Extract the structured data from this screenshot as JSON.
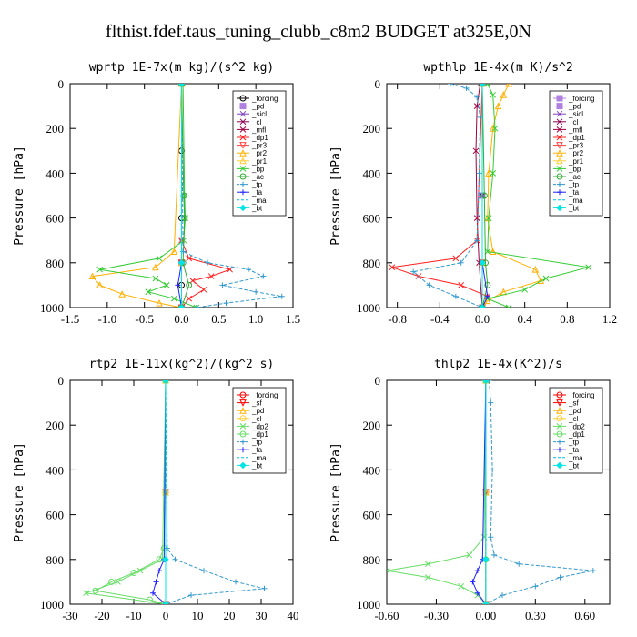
{
  "suptitle": "flthist.fdef.taus_tuning_clubb_c8m2  BUDGET at325E,0N",
  "colors": {
    "forcing": "#000000",
    "pd": "#b080e0",
    "sicl": "#8040c0",
    "cl": "#8b0050",
    "mfl": "#a00040",
    "dp1": "#ff2020",
    "pr3": "#ff4040",
    "pr2": "#ffb000",
    "pr1": "#ffcc33",
    "bp": "#33cc33",
    "ac": "#33aa33",
    "tp": "#3399cc",
    "ta": "#2222ff",
    "ma": "#00bbdd",
    "bt": "#00e5e5",
    "sf": "#ff0000",
    "dp2": "#66dd66"
  },
  "chart_data": [
    {
      "type": "line",
      "title": "wprtp  1E-7x(m kg)/(s^2 kg)",
      "ylabel": "Pressure [hPa]",
      "xlim": [
        -1.5,
        1.5
      ],
      "ylim": [
        1000,
        0
      ],
      "xticks": [
        "-1.5",
        "-1.0",
        "-0.5",
        "0.0",
        "0.5",
        "1.0",
        "1.5"
      ],
      "yticks": [
        "0",
        "200",
        "400",
        "600",
        "800",
        "1000"
      ],
      "legend_position": "top-right",
      "series": [
        {
          "name": "_forcing",
          "key": "forcing",
          "marker": "o",
          "dash": "",
          "y": [
            0,
            300,
            600,
            800,
            900,
            1000
          ],
          "x": [
            0,
            0,
            0,
            0,
            0,
            0
          ]
        },
        {
          "name": "_pd",
          "key": "pd",
          "marker": "s",
          "dash": "",
          "y": [
            0,
            800,
            1000
          ],
          "x": [
            0,
            0,
            0
          ]
        },
        {
          "name": "_sicl",
          "key": "sicl",
          "marker": "x",
          "dash": "",
          "y": [
            0,
            800,
            1000
          ],
          "x": [
            0,
            0,
            0
          ]
        },
        {
          "name": "_cl",
          "key": "cl",
          "marker": "x",
          "dash": "",
          "y": [
            0,
            800,
            1000
          ],
          "x": [
            0,
            0,
            0
          ]
        },
        {
          "name": "_mfl",
          "key": "mfl",
          "marker": "x",
          "dash": "",
          "y": [
            0,
            800,
            1000
          ],
          "x": [
            0,
            0,
            0
          ]
        },
        {
          "name": "_dp1",
          "key": "dp1",
          "marker": "x",
          "dash": "",
          "y": [
            0,
            700,
            780,
            830,
            860,
            880,
            920,
            960,
            1000
          ],
          "x": [
            0,
            0,
            0.1,
            0.65,
            0.4,
            0.15,
            0.3,
            0.1,
            0
          ]
        },
        {
          "name": "_pr3",
          "key": "pr3",
          "marker": "v",
          "dash": "",
          "y": [
            0,
            700,
            800,
            1000
          ],
          "x": [
            0,
            0,
            0,
            0
          ]
        },
        {
          "name": "_pr2",
          "key": "pr2",
          "marker": "^",
          "dash": "",
          "y": [
            0,
            750,
            820,
            860,
            900,
            940,
            980,
            1000
          ],
          "x": [
            0,
            -0.1,
            -0.35,
            -1.2,
            -1.1,
            -0.8,
            -0.3,
            0
          ]
        },
        {
          "name": "_pr1",
          "key": "pr1",
          "marker": "^",
          "dash": "",
          "y": [
            0,
            800,
            1000
          ],
          "x": [
            0,
            0,
            0
          ]
        },
        {
          "name": "_bp",
          "key": "bp",
          "marker": "x",
          "dash": "",
          "y": [
            0,
            500,
            600,
            700,
            780,
            830,
            870,
            900,
            930,
            960,
            1000
          ],
          "x": [
            0.02,
            0.04,
            0.05,
            0.03,
            -0.3,
            -1.1,
            -0.35,
            -0.2,
            -0.45,
            -0.1,
            0.2
          ]
        },
        {
          "name": "_ac",
          "key": "ac",
          "marker": "o",
          "dash": "",
          "y": [
            0,
            500,
            600,
            800,
            900,
            1000
          ],
          "x": [
            0,
            0.03,
            0.04,
            0.02,
            0.1,
            0
          ]
        },
        {
          "name": "_tp",
          "key": "tp",
          "marker": "+",
          "dash": "4,2",
          "y": [
            0,
            750,
            800,
            830,
            860,
            900,
            930,
            950,
            980,
            1000
          ],
          "x": [
            0,
            0.02,
            0.35,
            0.9,
            1.1,
            0.55,
            1.0,
            1.35,
            0.6,
            0.2
          ]
        },
        {
          "name": "_ta",
          "key": "ta",
          "marker": "+",
          "dash": "",
          "y": [
            0,
            800,
            900,
            1000
          ],
          "x": [
            0,
            0,
            -0.05,
            0
          ]
        },
        {
          "name": "_ma",
          "key": "ma",
          "marker": "",
          "dash": "6,3",
          "y": [
            0,
            800,
            1000
          ],
          "x": [
            0,
            0,
            0
          ]
        },
        {
          "name": "_bt",
          "key": "bt",
          "marker": "D",
          "dash": "",
          "y": [
            0,
            800,
            1000
          ],
          "x": [
            0,
            0,
            0
          ]
        }
      ]
    },
    {
      "type": "line",
      "title": "wpthlp  1E-4x(m K)/s^2",
      "ylabel": "Pressure [hPa]",
      "xlim": [
        -0.9,
        1.2
      ],
      "ylim": [
        1000,
        0
      ],
      "xticks": [
        "-0.8",
        "-0.4",
        "0.0",
        "0.4",
        "0.8",
        "1.2"
      ],
      "yticks": [
        "0",
        "200",
        "400",
        "600",
        "800",
        "1000"
      ],
      "legend_position": "top-right",
      "series": [
        {
          "name": "_forcing",
          "key": "pd",
          "marker": "s",
          "dash": "",
          "y": [
            0,
            500,
            1000
          ],
          "x": [
            0,
            0,
            0
          ]
        },
        {
          "name": "_pd",
          "key": "pd",
          "marker": "s",
          "dash": "",
          "y": [
            0,
            500,
            1000
          ],
          "x": [
            0,
            0,
            0
          ]
        },
        {
          "name": "_sicl",
          "key": "sicl",
          "marker": "x",
          "dash": "",
          "y": [
            0,
            500,
            1000
          ],
          "x": [
            0,
            0,
            0
          ]
        },
        {
          "name": "_cl",
          "key": "cl",
          "marker": "x",
          "dash": "",
          "y": [
            0,
            500,
            1000
          ],
          "x": [
            0,
            0,
            0
          ]
        },
        {
          "name": "_mfl",
          "key": "mfl",
          "marker": "x",
          "dash": "",
          "y": [
            0,
            100,
            300,
            600,
            800,
            1000
          ],
          "x": [
            -0.02,
            -0.05,
            -0.06,
            -0.05,
            -0.03,
            0
          ]
        },
        {
          "name": "_dp1",
          "key": "dp1",
          "marker": "x",
          "dash": "",
          "y": [
            0,
            700,
            780,
            820,
            860,
            900,
            950,
            1000
          ],
          "x": [
            0,
            -0.05,
            -0.25,
            -0.85,
            -0.6,
            -0.2,
            0.05,
            0
          ]
        },
        {
          "name": "_pr3",
          "key": "pr3",
          "marker": "v",
          "dash": "",
          "y": [
            0,
            800,
            1000
          ],
          "x": [
            0,
            0,
            0
          ]
        },
        {
          "name": "_pr2",
          "key": "pr2",
          "marker": "^",
          "dash": "",
          "y": [
            0,
            50,
            100,
            200,
            400,
            600,
            750,
            830,
            880,
            930,
            970,
            1000
          ],
          "x": [
            0.25,
            0.2,
            0.15,
            0.1,
            0.06,
            0.05,
            0.1,
            0.5,
            0.55,
            0.2,
            0.05,
            0
          ]
        },
        {
          "name": "_pr1",
          "key": "pr1",
          "marker": "^",
          "dash": "",
          "y": [
            0,
            800,
            1000
          ],
          "x": [
            0,
            0,
            0
          ]
        },
        {
          "name": "_bp",
          "key": "bp",
          "marker": "x",
          "dash": "",
          "y": [
            0,
            50,
            200,
            400,
            600,
            750,
            820,
            870,
            920,
            960,
            1000
          ],
          "x": [
            0.05,
            0.1,
            0.12,
            0.1,
            0.06,
            0.05,
            1.0,
            0.6,
            0.4,
            0.05,
            0.25
          ]
        },
        {
          "name": "_ac",
          "key": "ac",
          "marker": "o",
          "dash": "",
          "y": [
            0,
            500,
            800,
            900,
            1000
          ],
          "x": [
            0,
            0.02,
            0.03,
            0.05,
            0
          ]
        },
        {
          "name": "_tp",
          "key": "tp",
          "marker": "+",
          "dash": "4,2",
          "y": [
            0,
            20,
            60,
            150,
            400,
            700,
            800,
            840,
            900,
            950,
            1000
          ],
          "x": [
            -0.3,
            -0.15,
            -0.05,
            -0.02,
            -0.03,
            -0.05,
            -0.2,
            -0.65,
            -0.5,
            -0.25,
            0
          ]
        },
        {
          "name": "_ta",
          "key": "ta",
          "marker": "+",
          "dash": "",
          "y": [
            0,
            800,
            950,
            1000
          ],
          "x": [
            0,
            0,
            0.05,
            0
          ]
        },
        {
          "name": "_ma",
          "key": "ma",
          "marker": "",
          "dash": "6,3",
          "y": [
            0,
            800,
            1000
          ],
          "x": [
            0,
            0,
            0
          ]
        },
        {
          "name": "_bt",
          "key": "bt",
          "marker": "D",
          "dash": "",
          "y": [
            0,
            800,
            1000
          ],
          "x": [
            0,
            0,
            0
          ]
        }
      ]
    },
    {
      "type": "line",
      "title": "rtp2  1E-11x(kg^2)/(kg^2 s)",
      "ylabel": "Pressure [hPa]",
      "xlim": [
        -30,
        40
      ],
      "ylim": [
        1000,
        0
      ],
      "xticks": [
        "-30",
        "-20",
        "-10",
        "0",
        "10",
        "20",
        "30",
        "40"
      ],
      "yticks": [
        "0",
        "200",
        "400",
        "600",
        "800",
        "1000"
      ],
      "legend_position": "top-right",
      "series": [
        {
          "name": "_forcing",
          "key": "sf",
          "marker": "o",
          "dash": "",
          "y": [
            0,
            500,
            1000
          ],
          "x": [
            0,
            0,
            0
          ]
        },
        {
          "name": "_sf",
          "key": "sf",
          "marker": "v",
          "dash": "",
          "y": [
            0,
            500,
            1000
          ],
          "x": [
            0,
            0,
            0
          ]
        },
        {
          "name": "_pd",
          "key": "pr2",
          "marker": "^",
          "dash": "",
          "y": [
            0,
            500,
            1000
          ],
          "x": [
            0,
            0,
            0
          ]
        },
        {
          "name": "_cl",
          "key": "pr1",
          "marker": "o",
          "dash": "",
          "y": [
            0,
            500,
            1000
          ],
          "x": [
            0,
            0,
            0
          ]
        },
        {
          "name": "_dp2",
          "key": "dp2",
          "marker": "x",
          "dash": "",
          "y": [
            0,
            800,
            850,
            900,
            950,
            1000
          ],
          "x": [
            0,
            -1,
            -8,
            -15,
            -25,
            0
          ]
        },
        {
          "name": "_dp1",
          "key": "dp2",
          "marker": "o",
          "dash": "",
          "y": [
            0,
            750,
            800,
            860,
            900,
            940,
            980,
            1000
          ],
          "x": [
            0,
            -0.5,
            -2,
            -10,
            -17,
            -22,
            -5,
            0
          ]
        },
        {
          "name": "_tp",
          "key": "tp",
          "marker": "+",
          "dash": "4,2",
          "y": [
            0,
            750,
            800,
            850,
            900,
            930,
            960,
            1000
          ],
          "x": [
            0,
            0.5,
            3,
            12,
            22,
            31,
            8,
            0
          ]
        },
        {
          "name": "_ta",
          "key": "ta",
          "marker": "+",
          "dash": "",
          "y": [
            0,
            800,
            850,
            900,
            950,
            1000
          ],
          "x": [
            0,
            -0.5,
            -2,
            -3,
            -4,
            0
          ]
        },
        {
          "name": "_ma",
          "key": "ma",
          "marker": "",
          "dash": "6,3",
          "y": [
            0,
            800,
            1000
          ],
          "x": [
            0,
            0,
            0
          ]
        },
        {
          "name": "_bt",
          "key": "bt",
          "marker": "D",
          "dash": "",
          "y": [
            0,
            800,
            1000
          ],
          "x": [
            0,
            0,
            0
          ]
        }
      ]
    },
    {
      "type": "line",
      "title": "thlp2  1E-4x(K^2)/s",
      "ylabel": "Pressure [hPa]",
      "xlim": [
        -0.6,
        0.75
      ],
      "ylim": [
        1000,
        0
      ],
      "xticks": [
        "-0.60",
        "-0.30",
        "0.00",
        "0.30",
        "0.60"
      ],
      "yticks": [
        "0",
        "200",
        "400",
        "600",
        "800",
        "1000"
      ],
      "legend_position": "top-right",
      "series": [
        {
          "name": "_forcing",
          "key": "sf",
          "marker": "o",
          "dash": "",
          "y": [
            0,
            500,
            1000
          ],
          "x": [
            0,
            0,
            0
          ]
        },
        {
          "name": "_sf",
          "key": "sf",
          "marker": "v",
          "dash": "",
          "y": [
            0,
            500,
            1000
          ],
          "x": [
            0,
            0,
            0
          ]
        },
        {
          "name": "_pd",
          "key": "pr2",
          "marker": "^",
          "dash": "",
          "y": [
            0,
            500,
            1000
          ],
          "x": [
            0,
            0,
            0
          ]
        },
        {
          "name": "_cl",
          "key": "pr1",
          "marker": "o",
          "dash": "",
          "y": [
            0,
            500,
            1000
          ],
          "x": [
            0,
            0,
            0
          ]
        },
        {
          "name": "_dp2",
          "key": "dp2",
          "marker": "x",
          "dash": "",
          "y": [
            0,
            700,
            780,
            820,
            850,
            880,
            920,
            960,
            1000
          ],
          "x": [
            0,
            -0.01,
            -0.1,
            -0.35,
            -0.6,
            -0.35,
            -0.15,
            -0.05,
            0
          ]
        },
        {
          "name": "_dp1",
          "key": "dp2",
          "marker": "o",
          "dash": "",
          "y": [
            0,
            800,
            1000
          ],
          "x": [
            0,
            0,
            0
          ]
        },
        {
          "name": "_tp",
          "key": "tp",
          "marker": "+",
          "dash": "4,2",
          "y": [
            0,
            100,
            400,
            700,
            780,
            820,
            850,
            880,
            920,
            960,
            1000
          ],
          "x": [
            0.02,
            0.03,
            0.04,
            0.03,
            0.05,
            0.2,
            0.65,
            0.45,
            0.3,
            0.1,
            0
          ]
        },
        {
          "name": "_ta",
          "key": "ta",
          "marker": "+",
          "dash": "",
          "y": [
            0,
            800,
            850,
            900,
            950,
            1000
          ],
          "x": [
            0,
            -0.02,
            -0.05,
            -0.08,
            -0.05,
            0
          ]
        },
        {
          "name": "_ma",
          "key": "ma",
          "marker": "",
          "dash": "6,3",
          "y": [
            0,
            800,
            1000
          ],
          "x": [
            0,
            0,
            0
          ]
        },
        {
          "name": "_bt",
          "key": "bt",
          "marker": "D",
          "dash": "",
          "y": [
            0,
            800,
            1000
          ],
          "x": [
            0,
            0,
            0
          ]
        }
      ]
    }
  ]
}
